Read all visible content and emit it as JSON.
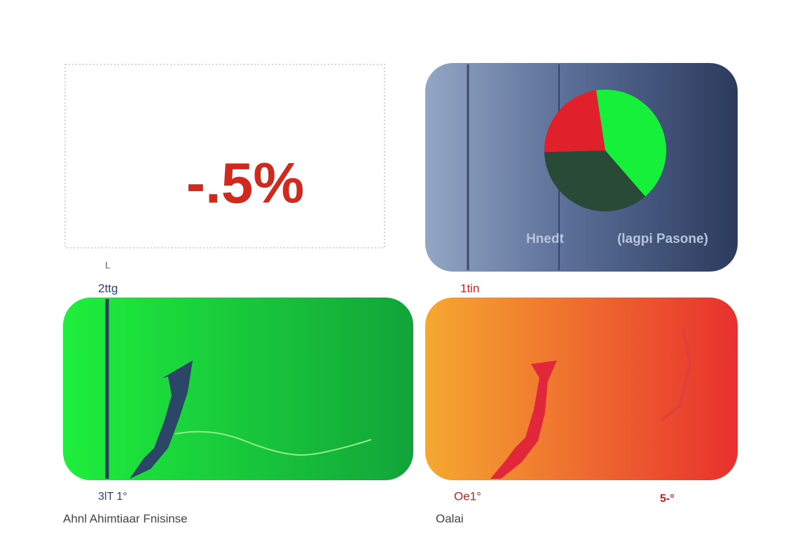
{
  "kpi": {
    "value_text": "-.5%",
    "axis_mark": "L"
  },
  "summary_panel": {
    "pie": {
      "values": [
        41,
        36,
        23
      ],
      "colors": [
        "#17f03a",
        "#2a4a38",
        "#e0202a"
      ]
    },
    "legend": [
      "Hnedt",
      "(lagpi Pasone)"
    ]
  },
  "growth_panel": {
    "caption": "2ttg",
    "footer_value": "3lT 1°",
    "footer_text": "Ahnl Ahimtiaar Fnisinse"
  },
  "decline_panel": {
    "caption": "1tin",
    "footer_value": "Oe1°",
    "footer_text": "Oalai",
    "end_value": "5-°"
  }
}
